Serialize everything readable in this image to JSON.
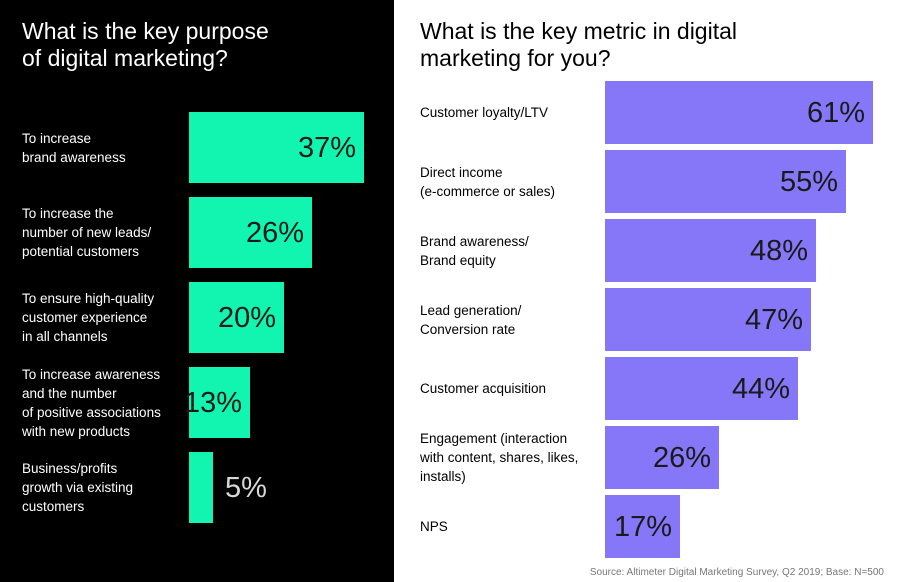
{
  "chart_data": [
    {
      "type": "bar",
      "orientation": "horizontal",
      "title": "What is the key purpose of digital marketing?",
      "title_lines": [
        "What is the key purpose",
        "of digital marketing?"
      ],
      "bar_color": "#12f5b0",
      "background": "#000000",
      "categories": [
        [
          "To increase",
          "brand awareness"
        ],
        [
          "To increase the",
          "number of new leads/",
          "potential customers"
        ],
        [
          "To ensure high-quality",
          "customer experience",
          "in all channels"
        ],
        [
          "To increase awareness",
          "and the number",
          "of positive associations",
          "with new products"
        ],
        [
          "Business/profits",
          "growth via existing",
          "customers"
        ]
      ],
      "values": [
        37,
        26,
        20,
        13,
        5
      ],
      "value_labels": [
        "37%",
        "26%",
        "20%",
        "13%",
        "5%"
      ],
      "xlim": [
        0,
        100
      ]
    },
    {
      "type": "bar",
      "orientation": "horizontal",
      "title": "What is the key metric in digital marketing for you?",
      "title_lines": [
        "What is the key metric in digital",
        "marketing for you?"
      ],
      "bar_color": "#8577f7",
      "background": "#ffffff",
      "categories": [
        [
          "Customer loyalty/LTV"
        ],
        [
          "Direct income",
          "(e-commerce or sales)"
        ],
        [
          "Brand awareness/",
          "Brand equity"
        ],
        [
          "Lead generation/",
          "Conversion rate"
        ],
        [
          "Customer acquisition"
        ],
        [
          "Engagement (interaction",
          "with content, shares, likes,",
          "installs)"
        ],
        [
          "NPS"
        ]
      ],
      "values": [
        61,
        55,
        48,
        47,
        44,
        26,
        17
      ],
      "value_labels": [
        "61%",
        "55%",
        "48%",
        "47%",
        "44%",
        "26%",
        "17%"
      ],
      "xlim": [
        0,
        100
      ]
    }
  ],
  "source": "Source: Altimeter Digital Marketing Survey, Q2 2019; Base: N=500"
}
